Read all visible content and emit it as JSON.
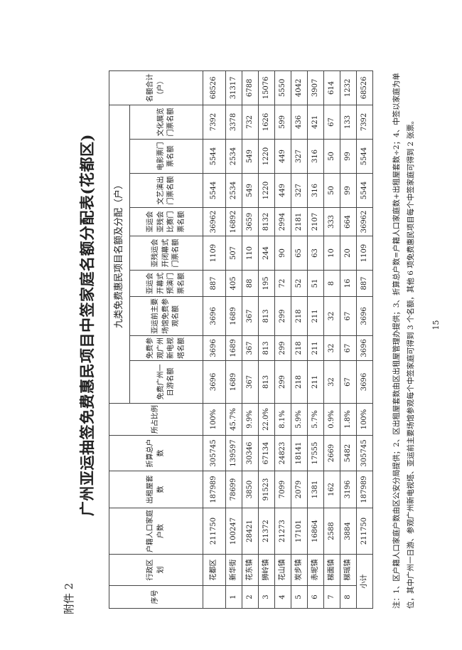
{
  "attachment_label": "附件 2",
  "title": "广州亚运抽签免费惠民项目中签家庭名额分配表(花都区)",
  "table": {
    "headers": {
      "seq": "序号",
      "district": "行政区划",
      "households": "户籍人口家庭户数",
      "rentals": "出租屋套数",
      "total_converted": "折算总户数",
      "ratio": "所占比例",
      "group": "九类免费惠民项目名额及分配（户）",
      "items": [
        "免费广州一日游名额",
        "免费参观广州新电视塔名额",
        "亚运前主要场馆免费参观名额",
        "亚运会开幕式预演门票名额",
        "亚残运会开闭幕式门票名额",
        "亚运会亚残会比赛门票名额",
        "文艺演出门票名额",
        "电影票门票名额",
        "文化展览门票名额"
      ],
      "total": "名额合计（户）"
    },
    "rows": [
      [
        "",
        "花都区",
        "211750",
        "187989",
        "305745",
        "100%",
        "3696",
        "3696",
        "3696",
        "887",
        "1109",
        "36962",
        "5544",
        "5544",
        "7392",
        "68526"
      ],
      [
        "1",
        "新华街",
        "100247",
        "78699",
        "139597",
        "45.7%",
        "1689",
        "1689",
        "1689",
        "405",
        "507",
        "16892",
        "2534",
        "2534",
        "3378",
        "31317"
      ],
      [
        "2",
        "花东镇",
        "28421",
        "3850",
        "30346",
        "9.9%",
        "367",
        "367",
        "367",
        "88",
        "110",
        "3659",
        "549",
        "549",
        "732",
        "6788"
      ],
      [
        "3",
        "狮岭镇",
        "21372",
        "91523",
        "67134",
        "22.0%",
        "813",
        "813",
        "813",
        "195",
        "244",
        "8132",
        "1220",
        "1220",
        "1626",
        "15076"
      ],
      [
        "4",
        "花山镇",
        "21273",
        "7099",
        "24823",
        "8.1%",
        "299",
        "299",
        "299",
        "72",
        "90",
        "2994",
        "449",
        "449",
        "599",
        "5550"
      ],
      [
        "5",
        "炭步镇",
        "17101",
        "2079",
        "18141",
        "5.9%",
        "218",
        "218",
        "218",
        "52",
        "65",
        "2181",
        "327",
        "327",
        "436",
        "4042"
      ],
      [
        "6",
        "赤坭镇",
        "16864",
        "1381",
        "17555",
        "5.7%",
        "211",
        "211",
        "211",
        "51",
        "63",
        "2107",
        "316",
        "316",
        "421",
        "3907"
      ],
      [
        "7",
        "梯面镇",
        "2588",
        "162",
        "2669",
        "0.9%",
        "32",
        "32",
        "32",
        "8",
        "10",
        "333",
        "50",
        "50",
        "67",
        "614"
      ],
      [
        "8",
        "梯瑶镇",
        "3884",
        "3196",
        "5482",
        "1.8%",
        "67",
        "67",
        "67",
        "16",
        "20",
        "664",
        "99",
        "99",
        "133",
        "1232"
      ]
    ],
    "subtotal": [
      "小计",
      "211750",
      "187989",
      "305745",
      "100%",
      "3696",
      "3696",
      "3696",
      "887",
      "1109",
      "36962",
      "5544",
      "5544",
      "7392",
      "68526"
    ]
  },
  "note": "注：1、区户籍人口家庭户数由区公安分局提供；2、区出租屋套数由区出租屋管理办提供；3、折算总户数=户籍人口家庭数+出租屋套数÷2；4、中签以家庭为单位，其中广州一日游、参观广州新电视塔、亚运前主要场馆参观每个中签家庭可得到 3 个名额，其他 6 项免费惠民项目每个中签家庭可得到 2 张票。",
  "page_number": "15"
}
